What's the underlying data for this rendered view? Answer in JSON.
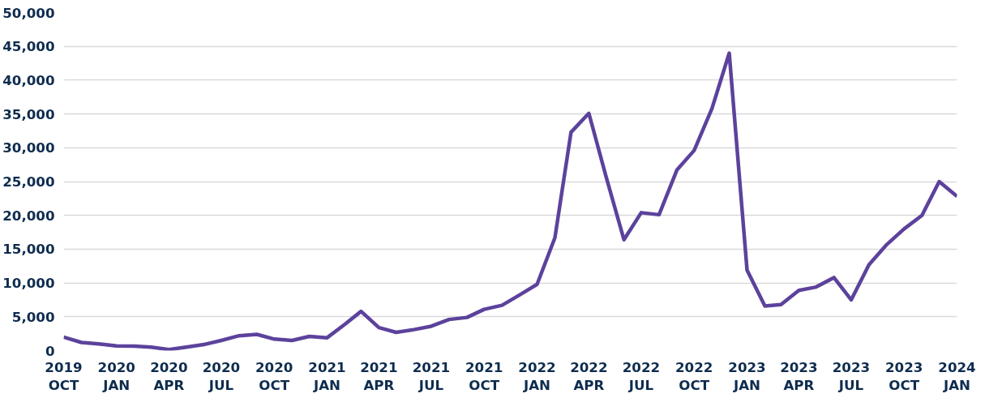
{
  "chart_data": {
    "type": "line",
    "x": [
      "2019-10",
      "2019-11",
      "2019-12",
      "2020-01",
      "2020-02",
      "2020-03",
      "2020-04",
      "2020-05",
      "2020-06",
      "2020-07",
      "2020-08",
      "2020-09",
      "2020-10",
      "2020-11",
      "2020-12",
      "2021-01",
      "2021-02",
      "2021-03",
      "2021-04",
      "2021-05",
      "2021-06",
      "2021-07",
      "2021-08",
      "2021-09",
      "2021-10",
      "2021-11",
      "2021-12",
      "2022-01",
      "2022-02",
      "2022-03",
      "2022-04",
      "2022-05",
      "2022-06",
      "2022-07",
      "2022-08",
      "2022-09",
      "2022-10",
      "2022-11",
      "2022-12",
      "2023-01",
      "2023-02",
      "2023-03",
      "2023-04",
      "2023-05",
      "2023-06",
      "2023-07",
      "2023-08",
      "2023-09",
      "2023-10",
      "2023-11",
      "2023-12",
      "2024-01"
    ],
    "series": [
      {
        "color": "#5c429c",
        "values": [
          2000,
          1200,
          1000,
          700,
          650,
          500,
          150,
          500,
          900,
          1500,
          2200,
          2400,
          1700,
          1500,
          2100,
          1900,
          3900,
          5800,
          3400,
          2700,
          3100,
          3600,
          4600,
          4900,
          6100,
          6700,
          8200,
          9800,
          16700,
          32300,
          35100,
          25700,
          16400,
          20400,
          20100,
          26700,
          29600,
          35800,
          44000,
          11900,
          6600,
          6800,
          8900,
          9400,
          10800,
          7500,
          12700,
          15700,
          18000,
          20000,
          25000,
          22800
        ]
      }
    ],
    "xlim": [
      "2019-10",
      "2024-01"
    ],
    "xticks": [
      {
        "value": "2019-10",
        "label": "2019\nOCT"
      },
      {
        "value": "2020-01",
        "label": "2020\nJAN"
      },
      {
        "value": "2020-04",
        "label": "2020\nAPR"
      },
      {
        "value": "2020-07",
        "label": "2020\nJUL"
      },
      {
        "value": "2020-10",
        "label": "2020\nOCT"
      },
      {
        "value": "2021-01",
        "label": "2021\nJAN"
      },
      {
        "value": "2021-04",
        "label": "2021\nAPR"
      },
      {
        "value": "2021-07",
        "label": "2021\nJUL"
      },
      {
        "value": "2021-10",
        "label": "2021\nOCT"
      },
      {
        "value": "2022-01",
        "label": "2022\nJAN"
      },
      {
        "value": "2022-04",
        "label": "2022\nAPR"
      },
      {
        "value": "2022-07",
        "label": "2022\nJUL"
      },
      {
        "value": "2022-10",
        "label": "2022\nOCT"
      },
      {
        "value": "2023-01",
        "label": "2023\nJAN"
      },
      {
        "value": "2023-04",
        "label": "2023\nAPR"
      },
      {
        "value": "2023-07",
        "label": "2023\nJUL"
      },
      {
        "value": "2023-10",
        "label": "2023\nOCT"
      },
      {
        "value": "2024-01",
        "label": "2024\nJAN"
      }
    ],
    "ylim": [
      0,
      50000
    ],
    "yticks": [
      {
        "value": 0,
        "label": "0"
      },
      {
        "value": 5000,
        "label": "5,000"
      },
      {
        "value": 10000,
        "label": "10,000"
      },
      {
        "value": 15000,
        "label": "15,000"
      },
      {
        "value": 20000,
        "label": "20,000"
      },
      {
        "value": 25000,
        "label": "25,000"
      },
      {
        "value": 30000,
        "label": "30,000"
      },
      {
        "value": 35000,
        "label": "35,000"
      },
      {
        "value": 40000,
        "label": "40,000"
      },
      {
        "value": 45000,
        "label": "45,000"
      },
      {
        "value": 50000,
        "label": "50,000"
      }
    ],
    "grid": "y",
    "marker": "none",
    "line_style": "solid"
  }
}
